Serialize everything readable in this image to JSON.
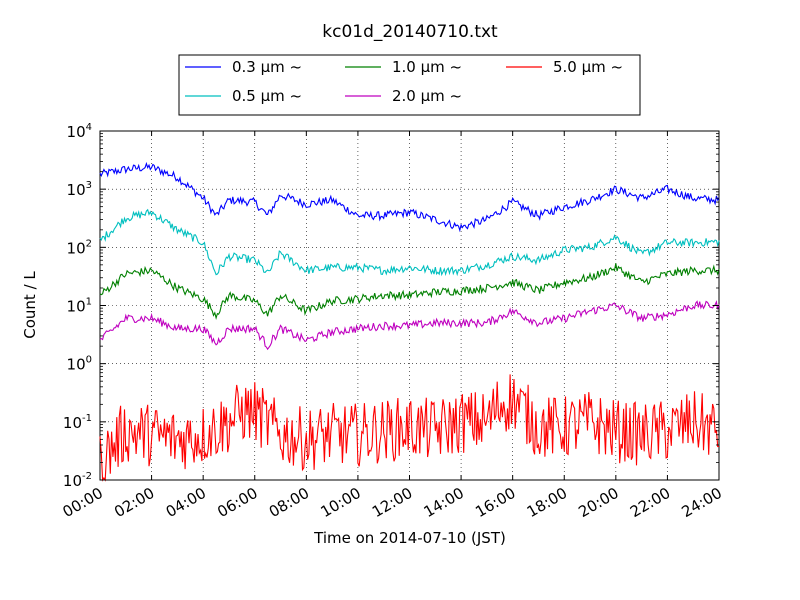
{
  "chart_data": {
    "type": "line",
    "title": "kc01d_20140710.txt",
    "xlabel": "Time on 2014-07-10 (JST)",
    "ylabel": "Count / L",
    "x_range": [
      "00:00",
      "24:00"
    ],
    "xticks": [
      "00:00",
      "02:00",
      "04:00",
      "06:00",
      "08:00",
      "10:00",
      "12:00",
      "14:00",
      "16:00",
      "18:00",
      "20:00",
      "22:00",
      "24:00"
    ],
    "y_scale": "log",
    "ylim": [
      0.01,
      10000
    ],
    "yticks": [
      {
        "base": "10",
        "exp": "-2",
        "value": 0.01
      },
      {
        "base": "10",
        "exp": "-1",
        "value": 0.1
      },
      {
        "base": "10",
        "exp": "0",
        "value": 1
      },
      {
        "base": "10",
        "exp": "1",
        "value": 10
      },
      {
        "base": "10",
        "exp": "2",
        "value": 100
      },
      {
        "base": "10",
        "exp": "3",
        "value": 1000
      },
      {
        "base": "10",
        "exp": "4",
        "value": 10000
      }
    ],
    "grid": true,
    "legend_position": "top-center",
    "series": [
      {
        "name": "0.3 μm ~",
        "color": "#0000ff",
        "points": [
          [
            "00:00",
            1800
          ],
          [
            "01:00",
            2200
          ],
          [
            "02:00",
            2400
          ],
          [
            "03:00",
            1600
          ],
          [
            "04:00",
            700
          ],
          [
            "04:30",
            350
          ],
          [
            "05:00",
            650
          ],
          [
            "06:00",
            600
          ],
          [
            "06:30",
            350
          ],
          [
            "07:00",
            800
          ],
          [
            "08:00",
            550
          ],
          [
            "09:00",
            650
          ],
          [
            "10:00",
            350
          ],
          [
            "11:00",
            350
          ],
          [
            "12:00",
            400
          ],
          [
            "13:00",
            300
          ],
          [
            "14:00",
            220
          ],
          [
            "15:00",
            300
          ],
          [
            "16:00",
            600
          ],
          [
            "17:00",
            350
          ],
          [
            "18:00",
            500
          ],
          [
            "19:00",
            650
          ],
          [
            "20:00",
            1000
          ],
          [
            "21:00",
            700
          ],
          [
            "22:00",
            1000
          ],
          [
            "23:00",
            700
          ],
          [
            "24:00",
            650
          ]
        ]
      },
      {
        "name": "0.5 μm ~",
        "color": "#00bfbf",
        "points": [
          [
            "00:00",
            130
          ],
          [
            "01:00",
            320
          ],
          [
            "02:00",
            400
          ],
          [
            "03:00",
            200
          ],
          [
            "04:00",
            120
          ],
          [
            "04:30",
            35
          ],
          [
            "05:00",
            70
          ],
          [
            "06:00",
            60
          ],
          [
            "06:30",
            35
          ],
          [
            "07:00",
            80
          ],
          [
            "08:00",
            40
          ],
          [
            "09:00",
            45
          ],
          [
            "10:00",
            45
          ],
          [
            "11:00",
            40
          ],
          [
            "12:00",
            45
          ],
          [
            "13:00",
            40
          ],
          [
            "14:00",
            40
          ],
          [
            "15:00",
            50
          ],
          [
            "16:00",
            70
          ],
          [
            "17:00",
            60
          ],
          [
            "18:00",
            90
          ],
          [
            "19:00",
            100
          ],
          [
            "20:00",
            150
          ],
          [
            "21:00",
            75
          ],
          [
            "22:00",
            120
          ],
          [
            "23:00",
            120
          ],
          [
            "24:00",
            125
          ]
        ]
      },
      {
        "name": "1.0 μm ~",
        "color": "#008000",
        "points": [
          [
            "00:00",
            15
          ],
          [
            "01:00",
            35
          ],
          [
            "02:00",
            40
          ],
          [
            "03:00",
            20
          ],
          [
            "04:00",
            13
          ],
          [
            "04:30",
            7
          ],
          [
            "05:00",
            15
          ],
          [
            "06:00",
            12
          ],
          [
            "06:30",
            7
          ],
          [
            "07:00",
            15
          ],
          [
            "08:00",
            8
          ],
          [
            "09:00",
            12
          ],
          [
            "10:00",
            13
          ],
          [
            "11:00",
            15
          ],
          [
            "12:00",
            15
          ],
          [
            "13:00",
            17
          ],
          [
            "14:00",
            18
          ],
          [
            "15:00",
            20
          ],
          [
            "16:00",
            25
          ],
          [
            "17:00",
            18
          ],
          [
            "18:00",
            25
          ],
          [
            "19:00",
            30
          ],
          [
            "20:00",
            45
          ],
          [
            "21:00",
            25
          ],
          [
            "22:00",
            35
          ],
          [
            "23:00",
            40
          ],
          [
            "24:00",
            40
          ]
        ]
      },
      {
        "name": "2.0 μm ~",
        "color": "#bf00bf",
        "points": [
          [
            "00:00",
            2.5
          ],
          [
            "01:00",
            6
          ],
          [
            "02:00",
            6
          ],
          [
            "03:00",
            4
          ],
          [
            "04:00",
            4
          ],
          [
            "04:30",
            2.2
          ],
          [
            "05:00",
            4
          ],
          [
            "06:00",
            4
          ],
          [
            "06:30",
            2
          ],
          [
            "07:00",
            4
          ],
          [
            "08:00",
            2.5
          ],
          [
            "09:00",
            3.5
          ],
          [
            "10:00",
            4
          ],
          [
            "11:00",
            4.5
          ],
          [
            "12:00",
            4.5
          ],
          [
            "13:00",
            5
          ],
          [
            "14:00",
            5
          ],
          [
            "15:00",
            5
          ],
          [
            "16:00",
            8
          ],
          [
            "17:00",
            5
          ],
          [
            "18:00",
            6
          ],
          [
            "19:00",
            8
          ],
          [
            "20:00",
            10
          ],
          [
            "21:00",
            6
          ],
          [
            "22:00",
            7
          ],
          [
            "23:00",
            10
          ],
          [
            "24:00",
            10
          ]
        ]
      },
      {
        "name": "5.0 μm ~",
        "color": "#ff0000",
        "points": [
          [
            "00:00",
            0.02
          ],
          [
            "01:00",
            0.07
          ],
          [
            "02:00",
            0.06
          ],
          [
            "03:00",
            0.05
          ],
          [
            "04:00",
            0.06
          ],
          [
            "05:00",
            0.1
          ],
          [
            "05:30",
            0.15
          ],
          [
            "06:00",
            0.15
          ],
          [
            "07:00",
            0.06
          ],
          [
            "08:00",
            0.05
          ],
          [
            "09:00",
            0.06
          ],
          [
            "10:00",
            0.06
          ],
          [
            "11:00",
            0.07
          ],
          [
            "12:00",
            0.08
          ],
          [
            "13:00",
            0.07
          ],
          [
            "14:00",
            0.1
          ],
          [
            "15:00",
            0.1
          ],
          [
            "15:30",
            0.2
          ],
          [
            "16:00",
            0.25
          ],
          [
            "17:00",
            0.08
          ],
          [
            "18:00",
            0.08
          ],
          [
            "19:00",
            0.1
          ],
          [
            "20:00",
            0.07
          ],
          [
            "21:00",
            0.06
          ],
          [
            "22:00",
            0.07
          ],
          [
            "23:00",
            0.1
          ],
          [
            "24:00",
            0.07
          ]
        ]
      }
    ]
  }
}
